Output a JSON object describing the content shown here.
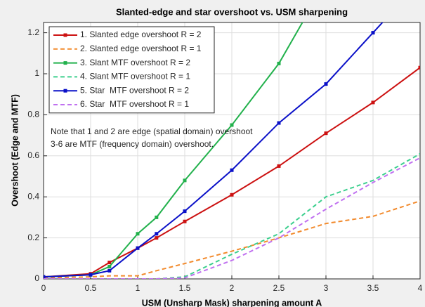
{
  "chart_data": {
    "type": "line",
    "title": "Slanted-edge and star overshoot vs. USM sharpening",
    "xlabel": "USM (Unsharp Mask) sharpening amount A",
    "ylabel": "Overshoot (Edge and MTF)",
    "annotations": [
      "Note that 1 and 2 are edge (spatial domain) overshoot",
      "3-6 are MTF (frequency domain) overshoot."
    ],
    "x": [
      0,
      0.5,
      0.7,
      1,
      1.2,
      1.5,
      2,
      2.5,
      3,
      3.5,
      4
    ],
    "series": [
      {
        "name": "1. Slanted edge overshoot R = 2",
        "color": "#cc1111",
        "linestyle": "-",
        "marker": "square",
        "values": [
          0.01,
          0.025,
          0.08,
          0.15,
          0.2,
          0.28,
          0.41,
          0.55,
          0.71,
          0.86,
          1.03
        ]
      },
      {
        "name": "2. Slanted edge overshoot R = 1",
        "color": "#f28a2c",
        "linestyle": "--",
        "marker": "none",
        "values": [
          0.005,
          0.01,
          0.015,
          0.015,
          0.04,
          0.075,
          0.135,
          0.2,
          0.27,
          0.305,
          0.38
        ]
      },
      {
        "name": "3. Slant MTF overshoot R = 2",
        "color": "#22b14c",
        "linestyle": "-",
        "marker": "square",
        "values": [
          0.01,
          0.02,
          0.06,
          0.22,
          0.3,
          0.48,
          0.75,
          1.05,
          1.45,
          null,
          null
        ]
      },
      {
        "name": "4. Slant MTF overshoot R = 1",
        "color": "#3ccf8e",
        "linestyle": "--",
        "marker": "none",
        "values": [
          0,
          0,
          0,
          0,
          0,
          0.01,
          0.12,
          0.22,
          0.4,
          0.48,
          0.61
        ]
      },
      {
        "name": "5. Star  MTF overshoot R = 2",
        "color": "#0a10c8",
        "linestyle": "-",
        "marker": "square",
        "values": [
          0.01,
          0.02,
          0.04,
          0.15,
          0.22,
          0.33,
          0.53,
          0.76,
          0.95,
          1.2,
          1.45
        ]
      },
      {
        "name": "6. Star  MTF overshoot R = 1",
        "color": "#c070f0",
        "linestyle": "--",
        "marker": "none",
        "values": [
          0,
          0,
          0,
          0,
          0,
          0.005,
          0.09,
          0.2,
          0.34,
          0.47,
          0.59
        ]
      }
    ],
    "xlim": [
      0,
      4
    ],
    "xticks": [
      0,
      0.5,
      1,
      1.5,
      2,
      2.5,
      3,
      3.5,
      4
    ],
    "ylim": [
      0,
      1.25
    ],
    "yticks": [
      0,
      0.2,
      0.4,
      0.6,
      0.8,
      1,
      1.2
    ],
    "grid": true,
    "legend": "upper left"
  }
}
